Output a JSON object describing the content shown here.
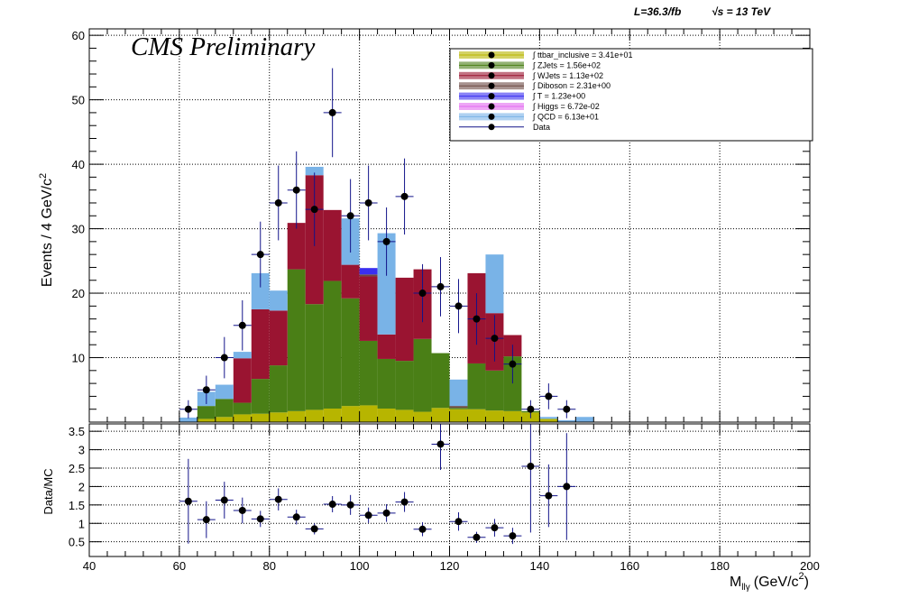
{
  "header": {
    "lumi": "L=36.3/fb",
    "sqrt_s": "√s = 13 TeV",
    "cms_label": "CMS Preliminary"
  },
  "colors": {
    "ttbar_inclusive": "#b7b500",
    "ZJets": "#4a7f16",
    "WJets": "#9a1431",
    "Diboson": "#6d4a44",
    "T": "#3a2ff0",
    "Higgs": "#e36bf0",
    "QCD": "#79b3e7",
    "Data": "#000000",
    "DataErr": "#12138a"
  },
  "chart_data": [
    {
      "type": "bar",
      "stacked": true,
      "xlabel_main": "M",
      "xlabel_sub": "llγ",
      "xlabel_unit": "(GeV/c",
      "xlabel_sup": "2",
      "xlabel_close": ")",
      "ylabel": "Events / 4 GeV/c",
      "ylabel_sup": "2",
      "xlim": [
        40,
        200
      ],
      "ylim": [
        0,
        61
      ],
      "grid": true,
      "bin_width": 4,
      "bin_edges_start": 60,
      "x_ticks": [
        "40",
        "60",
        "80",
        "100",
        "120",
        "140",
        "160",
        "180",
        "200"
      ],
      "y_ticks": [
        "10",
        "20",
        "30",
        "40",
        "50",
        "60"
      ],
      "legend_position": "top-right",
      "legend": [
        {
          "label": "∫ ttbar_inclusive = 3.41e+01",
          "color_key": "ttbar_inclusive"
        },
        {
          "label": "∫ ZJets = 1.56e+02",
          "color_key": "ZJets"
        },
        {
          "label": "∫ WJets = 1.13e+02",
          "color_key": "WJets"
        },
        {
          "label": "∫ Diboson = 2.31e+00",
          "color_key": "Diboson"
        },
        {
          "label": "∫ T = 1.23e+00",
          "color_key": "T"
        },
        {
          "label": "∫ Higgs = 6.72e-02",
          "color_key": "Higgs"
        },
        {
          "label": "∫ QCD = 6.13e+01",
          "color_key": "QCD"
        },
        {
          "label": "Data",
          "color_key": "Data"
        }
      ],
      "series": [
        {
          "name": "ttbar_inclusive",
          "color_key": "ttbar_inclusive",
          "values": [
            0,
            0.5,
            0.8,
            1.2,
            1.3,
            1.5,
            1.7,
            1.9,
            2.1,
            2.5,
            2.6,
            2.1,
            1.9,
            1.6,
            2.2,
            2.0,
            2.0,
            1.8,
            1.7,
            1.5,
            0.5,
            0,
            0
          ]
        },
        {
          "name": "ZJets",
          "color_key": "ZJets",
          "values": [
            0,
            2.0,
            2.8,
            1.8,
            5.4,
            7.3,
            22.0,
            16.4,
            19.8,
            16.7,
            10.0,
            7.7,
            7.6,
            11.3,
            8.5,
            0.2,
            7.1,
            6.2,
            8.5,
            0.2,
            0,
            0,
            0
          ]
        },
        {
          "name": "WJets",
          "color_key": "WJets",
          "values": [
            0,
            0,
            0,
            6.9,
            10.8,
            8.5,
            7.2,
            20.0,
            11.0,
            5.2,
            10.0,
            3.8,
            12.9,
            10.8,
            0,
            0,
            14.0,
            8.9,
            3.3,
            0,
            0,
            0,
            0
          ]
        },
        {
          "name": "Diboson",
          "color_key": "Diboson",
          "values": [
            0,
            0,
            0,
            0,
            0,
            0,
            0,
            0,
            0,
            0,
            0.3,
            0,
            0,
            0,
            0,
            0.3,
            0,
            0,
            0,
            0,
            0,
            0,
            0
          ]
        },
        {
          "name": "T",
          "color_key": "T",
          "values": [
            0,
            0,
            0,
            0,
            0,
            0,
            0,
            0,
            0,
            0,
            1.0,
            0,
            0,
            0,
            0,
            0,
            0,
            0,
            0,
            0,
            0,
            0,
            0
          ]
        },
        {
          "name": "Higgs",
          "color_key": "Higgs",
          "values": [
            0,
            0,
            0,
            0,
            0,
            0,
            0,
            0,
            0,
            0,
            0,
            0,
            0,
            0,
            0,
            0,
            0,
            0,
            0,
            0,
            0,
            0,
            0
          ]
        },
        {
          "name": "QCD",
          "color_key": "QCD",
          "values": [
            0.7,
            2.2,
            2.2,
            1.0,
            5.6,
            3.1,
            0,
            1.3,
            0,
            7.2,
            0,
            15.7,
            0,
            0,
            0,
            4.1,
            0,
            9.1,
            0,
            0,
            0.3,
            0.3,
            0.8
          ]
        }
      ],
      "data_points": [
        {
          "x": 62,
          "y": 2,
          "err": 1.4
        },
        {
          "x": 66,
          "y": 5,
          "err": 2.2
        },
        {
          "x": 70,
          "y": 10,
          "err": 3.2
        },
        {
          "x": 74,
          "y": 15,
          "err": 3.9
        },
        {
          "x": 78,
          "y": 26,
          "err": 5.1
        },
        {
          "x": 82,
          "y": 34,
          "err": 5.8
        },
        {
          "x": 86,
          "y": 36,
          "err": 6.0
        },
        {
          "x": 90,
          "y": 33,
          "err": 5.7
        },
        {
          "x": 94,
          "y": 48,
          "err": 6.9
        },
        {
          "x": 98,
          "y": 32,
          "err": 5.7
        },
        {
          "x": 102,
          "y": 34,
          "err": 5.8
        },
        {
          "x": 106,
          "y": 28,
          "err": 5.3
        },
        {
          "x": 110,
          "y": 35,
          "err": 5.9
        },
        {
          "x": 114,
          "y": 20,
          "err": 4.5
        },
        {
          "x": 118,
          "y": 21,
          "err": 4.6
        },
        {
          "x": 122,
          "y": 18,
          "err": 4.2
        },
        {
          "x": 126,
          "y": 16,
          "err": 4.0
        },
        {
          "x": 130,
          "y": 13,
          "err": 3.6
        },
        {
          "x": 134,
          "y": 9,
          "err": 3.0
        },
        {
          "x": 138,
          "y": 2,
          "err": 1.4
        },
        {
          "x": 142,
          "y": 4,
          "err": 2.0
        },
        {
          "x": 146,
          "y": 2,
          "err": 1.4
        }
      ]
    },
    {
      "type": "scatter",
      "ylabel": "Data/MC",
      "xlim": [
        40,
        200
      ],
      "ylim": [
        0.1,
        3.7
      ],
      "grid": true,
      "x_ticks": [
        "40",
        "60",
        "80",
        "100",
        "120",
        "140",
        "160",
        "180",
        "200"
      ],
      "y_ticks": [
        "0.5",
        "1",
        "1.5",
        "2",
        "2.5",
        "3",
        "3.5"
      ],
      "points": [
        {
          "x": 62,
          "y": 1.6,
          "err": 1.15
        },
        {
          "x": 66,
          "y": 1.1,
          "err": 0.5
        },
        {
          "x": 70,
          "y": 1.63,
          "err": 0.5
        },
        {
          "x": 74,
          "y": 1.35,
          "err": 0.35
        },
        {
          "x": 78,
          "y": 1.12,
          "err": 0.22
        },
        {
          "x": 82,
          "y": 1.65,
          "err": 0.3
        },
        {
          "x": 86,
          "y": 1.17,
          "err": 0.2
        },
        {
          "x": 90,
          "y": 0.85,
          "err": 0.15
        },
        {
          "x": 94,
          "y": 1.52,
          "err": 0.22
        },
        {
          "x": 98,
          "y": 1.5,
          "err": 0.27
        },
        {
          "x": 102,
          "y": 1.22,
          "err": 0.21
        },
        {
          "x": 106,
          "y": 1.28,
          "err": 0.24
        },
        {
          "x": 110,
          "y": 1.58,
          "err": 0.27
        },
        {
          "x": 114,
          "y": 0.84,
          "err": 0.19
        },
        {
          "x": 118,
          "y": 3.15,
          "err": 0.7
        },
        {
          "x": 122,
          "y": 1.05,
          "err": 0.25
        },
        {
          "x": 126,
          "y": 0.62,
          "err": 0.15
        },
        {
          "x": 130,
          "y": 0.88,
          "err": 0.24
        },
        {
          "x": 134,
          "y": 0.66,
          "err": 0.22
        },
        {
          "x": 138,
          "y": 2.55,
          "err": 1.8
        },
        {
          "x": 142,
          "y": 1.75,
          "err": 0.85
        },
        {
          "x": 146,
          "y": 2.0,
          "err": 1.45
        }
      ]
    }
  ]
}
